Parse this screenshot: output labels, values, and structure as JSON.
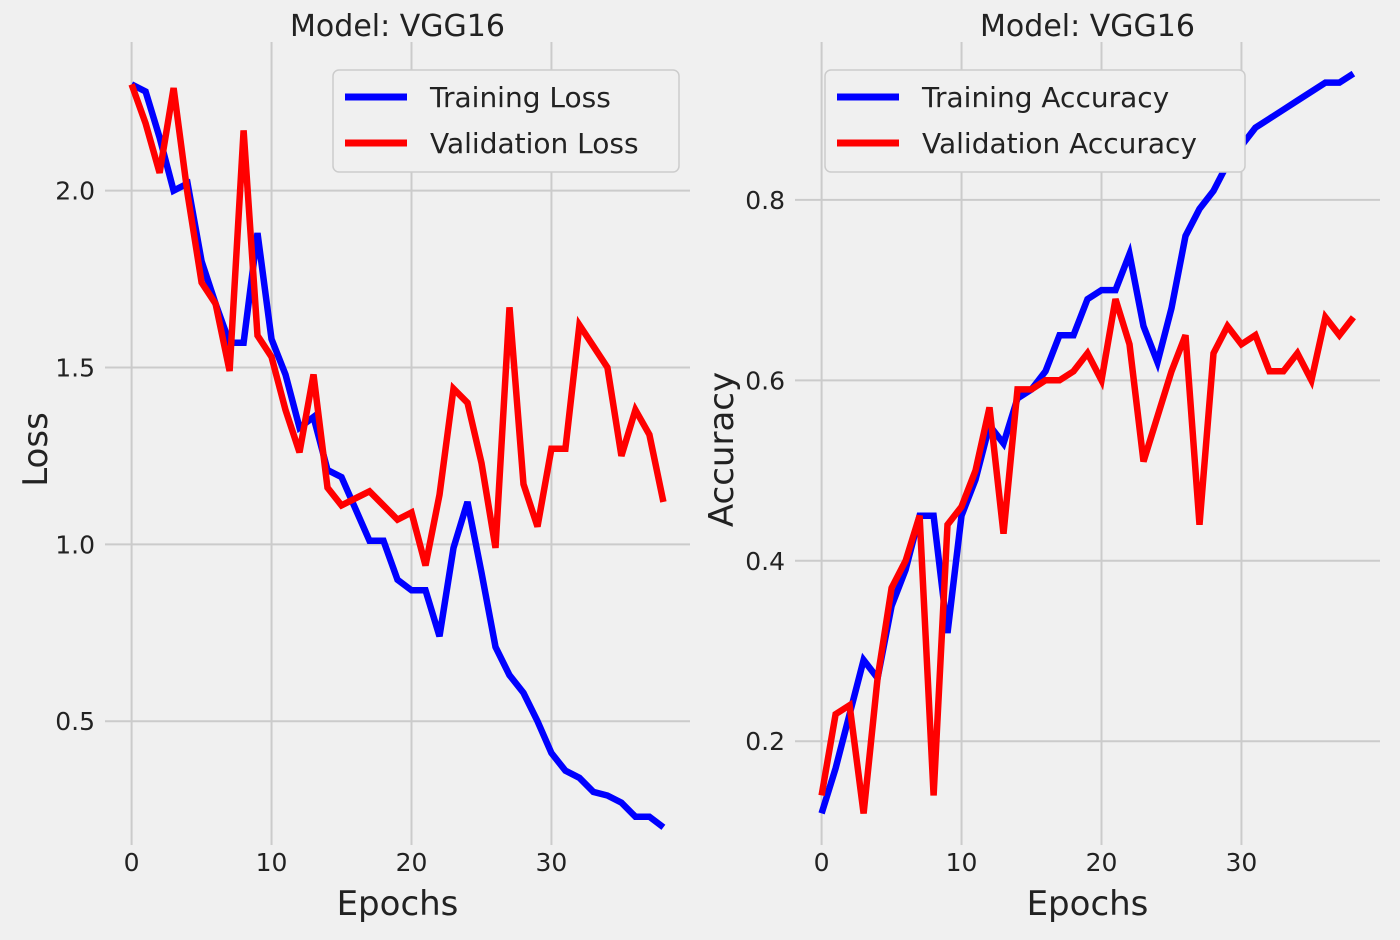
{
  "chart_data": [
    {
      "type": "line",
      "title": "Model: VGG16",
      "xlabel": "Epochs",
      "ylabel": "Loss",
      "xlim": [
        -1.9,
        39.9
      ],
      "ylim": [
        0.15,
        2.42
      ],
      "xticks": [
        0,
        10,
        20,
        30
      ],
      "xtick_labels": [
        "0",
        "10",
        "20",
        "30"
      ],
      "yticks": [
        0.5,
        1.0,
        1.5,
        2.0
      ],
      "ytick_labels": [
        "0.5",
        "1.0",
        "1.5",
        "2.0"
      ],
      "grid": true,
      "legend_position": "top-right",
      "x": [
        0,
        1,
        2,
        3,
        4,
        5,
        6,
        7,
        8,
        9,
        10,
        11,
        12,
        13,
        14,
        15,
        16,
        17,
        18,
        19,
        20,
        21,
        22,
        23,
        24,
        25,
        26,
        27,
        28,
        29,
        30,
        31,
        32,
        33,
        34,
        35,
        36,
        37,
        38
      ],
      "series": [
        {
          "name": "Training Loss",
          "color": "#0000ff",
          "values": [
            2.3,
            2.28,
            2.15,
            2.0,
            2.02,
            1.8,
            1.68,
            1.57,
            1.57,
            1.88,
            1.58,
            1.48,
            1.33,
            1.36,
            1.21,
            1.19,
            1.1,
            1.01,
            1.01,
            0.9,
            0.87,
            0.87,
            0.74,
            0.99,
            1.12,
            0.92,
            0.71,
            0.63,
            0.58,
            0.5,
            0.41,
            0.36,
            0.34,
            0.3,
            0.29,
            0.27,
            0.23,
            0.23,
            0.2
          ]
        },
        {
          "name": "Validation Loss",
          "color": "#ff0000",
          "values": [
            2.3,
            2.19,
            2.05,
            2.29,
            1.99,
            1.74,
            1.68,
            1.49,
            2.17,
            1.59,
            1.53,
            1.38,
            1.26,
            1.48,
            1.16,
            1.11,
            1.13,
            1.15,
            1.11,
            1.07,
            1.09,
            0.94,
            1.14,
            1.44,
            1.4,
            1.23,
            0.99,
            1.67,
            1.17,
            1.05,
            1.27,
            1.27,
            1.62,
            1.56,
            1.5,
            1.25,
            1.38,
            1.31,
            1.12
          ]
        }
      ]
    },
    {
      "type": "line",
      "title": "Model: VGG16",
      "xlabel": "Epochs",
      "ylabel": "Accuracy",
      "xlim": [
        -1.9,
        39.9
      ],
      "ylim": [
        0.085,
        0.975
      ],
      "xticks": [
        0,
        10,
        20,
        30
      ],
      "xtick_labels": [
        "0",
        "10",
        "20",
        "30"
      ],
      "yticks": [
        0.2,
        0.4,
        0.6,
        0.8
      ],
      "ytick_labels": [
        "0.2",
        "0.4",
        "0.6",
        "0.8"
      ],
      "grid": true,
      "legend_position": "top-left",
      "x": [
        0,
        1,
        2,
        3,
        4,
        5,
        6,
        7,
        8,
        9,
        10,
        11,
        12,
        13,
        14,
        15,
        16,
        17,
        18,
        19,
        20,
        21,
        22,
        23,
        24,
        25,
        26,
        27,
        28,
        29,
        30,
        31,
        32,
        33,
        34,
        35,
        36,
        37,
        38
      ],
      "series": [
        {
          "name": "Training Accuracy",
          "color": "#0000ff",
          "values": [
            0.12,
            0.17,
            0.23,
            0.29,
            0.27,
            0.35,
            0.39,
            0.45,
            0.45,
            0.32,
            0.45,
            0.49,
            0.55,
            0.53,
            0.58,
            0.59,
            0.61,
            0.65,
            0.65,
            0.69,
            0.7,
            0.7,
            0.74,
            0.66,
            0.62,
            0.68,
            0.76,
            0.79,
            0.81,
            0.84,
            0.86,
            0.88,
            0.89,
            0.9,
            0.91,
            0.92,
            0.93,
            0.93,
            0.94
          ]
        },
        {
          "name": "Validation Accuracy",
          "color": "#ff0000",
          "values": [
            0.14,
            0.23,
            0.24,
            0.12,
            0.27,
            0.37,
            0.4,
            0.45,
            0.14,
            0.44,
            0.46,
            0.5,
            0.57,
            0.43,
            0.59,
            0.59,
            0.6,
            0.6,
            0.61,
            0.63,
            0.6,
            0.69,
            0.64,
            0.51,
            0.56,
            0.61,
            0.65,
            0.44,
            0.63,
            0.66,
            0.64,
            0.65,
            0.61,
            0.61,
            0.63,
            0.6,
            0.67,
            0.65,
            0.67
          ]
        }
      ]
    }
  ]
}
